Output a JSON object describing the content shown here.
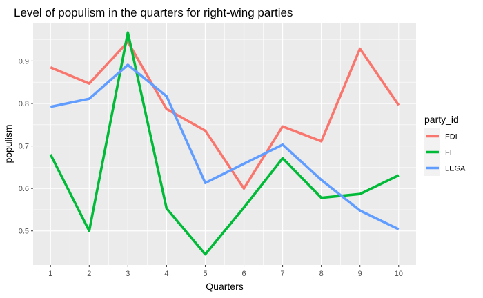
{
  "chart_data": {
    "type": "line",
    "title": "Level of populism in the quarters for right-wing parties",
    "xlabel": "Quarters",
    "ylabel": "populism",
    "x": [
      1,
      2,
      3,
      4,
      5,
      6,
      7,
      8,
      9,
      10
    ],
    "xticks": [
      "1",
      "2",
      "3",
      "4",
      "5",
      "6",
      "7",
      "8",
      "9",
      "10"
    ],
    "yticks": [
      0.5,
      0.6,
      0.7,
      0.8,
      0.9
    ],
    "ytick_labels": [
      "0.5",
      "0.6",
      "0.7",
      "0.8",
      "0.9"
    ],
    "xlim": [
      0.55,
      10.45
    ],
    "ylim": [
      0.42,
      0.99
    ],
    "grid": true,
    "legend": {
      "title": "party_id",
      "placement": "right"
    },
    "series": [
      {
        "name": "FDI",
        "color": "#F8766D",
        "values": [
          0.885,
          0.847,
          0.945,
          0.787,
          0.736,
          0.6,
          0.746,
          0.711,
          0.929,
          0.796
        ]
      },
      {
        "name": "FI",
        "color": "#00BA38",
        "values": [
          0.68,
          0.5,
          0.967,
          0.553,
          0.445,
          0.555,
          0.671,
          0.578,
          0.587,
          0.631
        ]
      },
      {
        "name": "LEGA",
        "color": "#619CFF",
        "values": [
          0.792,
          0.811,
          0.891,
          0.817,
          0.613,
          0.658,
          0.703,
          0.62,
          0.548,
          0.504
        ]
      }
    ]
  }
}
